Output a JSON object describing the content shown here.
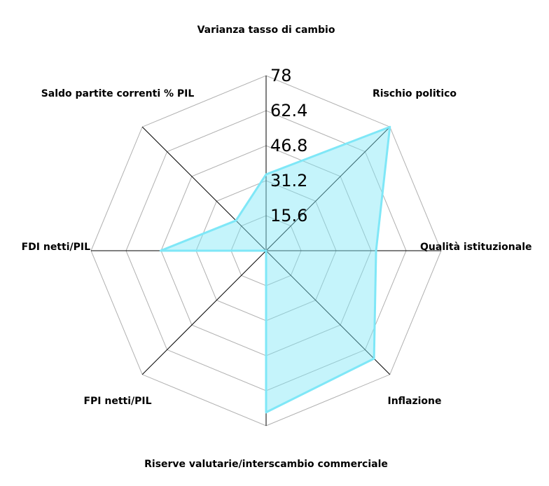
{
  "chart_data": {
    "type": "radar",
    "title": "",
    "axes": [
      "Varianza tasso di cambio",
      "Rischio politico",
      "Qualità istituzionale",
      "Inflazione",
      "Riserve valutarie/interscambio commerciale",
      "FPI netti/PIL",
      "FDI netti/PIL",
      "Saldo partite correnti % PIL"
    ],
    "rlim": [
      0,
      78
    ],
    "ticks": [
      "15.6",
      "31.2",
      "46.8",
      "62.4",
      "78"
    ],
    "tick_values": [
      15.6,
      31.2,
      46.8,
      62.4,
      78
    ],
    "series": [
      {
        "values": [
          34,
          78,
          49,
          68,
          72,
          0,
          47,
          19
        ]
      }
    ],
    "colors": {
      "fill": "#7fe7f7",
      "stroke": "#7fe7f7",
      "grid": "#b0b0b0",
      "spoke": "#000000"
    },
    "grid": true,
    "grid_shape": "polygon"
  }
}
